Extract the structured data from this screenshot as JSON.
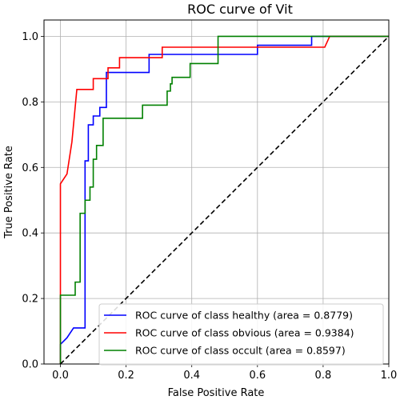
{
  "chart_data": {
    "type": "line",
    "title": "ROC curve of Vit",
    "xlabel": "False Positive Rate",
    "ylabel": "True Positive Rate",
    "xlim": [
      -0.05,
      1.0
    ],
    "ylim": [
      0.0,
      1.05
    ],
    "x_ticks": [
      "0.0",
      "0.2",
      "0.4",
      "0.6",
      "0.8",
      "1.0"
    ],
    "y_ticks": [
      "0.0",
      "0.2",
      "0.4",
      "0.6",
      "0.8",
      "1.0"
    ],
    "grid": true,
    "legend_position": "lower-right",
    "series": [
      {
        "name": "ROC curve of class healthy (area = 0.8779)",
        "color": "#0000ff",
        "x": [
          0.0,
          0.0,
          0.0,
          0.02,
          0.02,
          0.04,
          0.04,
          0.075,
          0.075,
          0.085,
          0.085,
          0.1,
          0.1,
          0.12,
          0.12,
          0.14,
          0.14,
          0.27,
          0.27,
          0.6,
          0.6,
          0.765,
          0.765,
          1.0
        ],
        "y": [
          0.0,
          0.06,
          0.06,
          0.08,
          0.08,
          0.11,
          0.11,
          0.11,
          0.62,
          0.62,
          0.73,
          0.73,
          0.757,
          0.757,
          0.783,
          0.783,
          0.89,
          0.89,
          0.945,
          0.945,
          0.973,
          0.973,
          1.0,
          1.0
        ]
      },
      {
        "name": "ROC curve of class obvious (area = 0.9384)",
        "color": "#ff0000",
        "x": [
          0.0,
          0.0,
          0.0,
          0.02,
          0.02,
          0.035,
          0.035,
          0.05,
          0.05,
          0.1,
          0.1,
          0.145,
          0.145,
          0.18,
          0.18,
          0.31,
          0.31,
          0.805,
          0.82,
          1.0
        ],
        "y": [
          0.0,
          0.55,
          0.55,
          0.58,
          0.58,
          0.678,
          0.678,
          0.838,
          0.838,
          0.838,
          0.871,
          0.871,
          0.904,
          0.904,
          0.935,
          0.935,
          0.967,
          0.967,
          1.0,
          1.0
        ]
      },
      {
        "name": "ROC curve of class occult (area = 0.8597)",
        "color": "#008000",
        "x": [
          0.0,
          0.0,
          0.0,
          0.045,
          0.045,
          0.06,
          0.06,
          0.075,
          0.075,
          0.09,
          0.09,
          0.1,
          0.1,
          0.11,
          0.11,
          0.13,
          0.13,
          0.25,
          0.25,
          0.325,
          0.325,
          0.335,
          0.335,
          0.34,
          0.34,
          0.395,
          0.395,
          0.48,
          0.48,
          1.0
        ],
        "y": [
          0.0,
          0.21,
          0.21,
          0.21,
          0.25,
          0.25,
          0.46,
          0.46,
          0.5,
          0.5,
          0.54,
          0.54,
          0.625,
          0.625,
          0.667,
          0.667,
          0.75,
          0.75,
          0.79,
          0.79,
          0.833,
          0.833,
          0.855,
          0.855,
          0.875,
          0.875,
          0.917,
          0.917,
          1.0,
          1.0
        ]
      },
      {
        "name": "",
        "color": "#000000",
        "dashed": true,
        "x": [
          0.0,
          1.0
        ],
        "y": [
          0.0,
          1.0
        ]
      }
    ]
  }
}
